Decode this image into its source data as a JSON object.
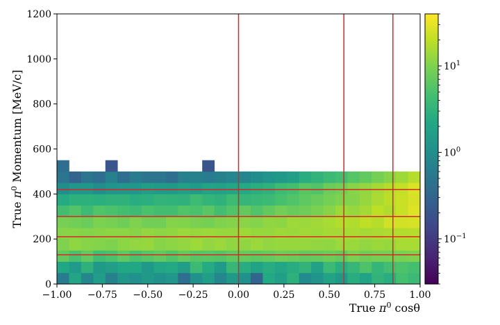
{
  "chart_data": {
    "type": "heatmap",
    "x_label": {
      "before": "True ",
      "sym": "π",
      "sup": "0",
      "after": " cosθ"
    },
    "y_label": {
      "before": "True ",
      "sym": "π",
      "sup": "0",
      "after": " Momentum [MeV/c]"
    },
    "xlim": [
      -1.0,
      1.0
    ],
    "ylim": [
      0,
      1200
    ],
    "x_ticks": [
      "−1.00",
      "−0.75",
      "−0.50",
      "−0.25",
      "0.00",
      "0.25",
      "0.50",
      "0.75",
      "1.00"
    ],
    "x_tick_values": [
      -1.0,
      -0.75,
      -0.5,
      -0.25,
      0.0,
      0.25,
      0.5,
      0.75,
      1.0
    ],
    "y_ticks": [
      "0",
      "200",
      "400",
      "600",
      "800",
      "1000",
      "1200"
    ],
    "y_tick_values": [
      0,
      200,
      400,
      600,
      800,
      1000,
      1200
    ],
    "colorbar": {
      "scale": "log",
      "vmin": 0.03,
      "vmax": 40,
      "ticks": [
        {
          "value": 0.1,
          "base": "10",
          "exp": "−1"
        },
        {
          "value": 1,
          "base": "10",
          "exp": "0"
        },
        {
          "value": 10,
          "base": "10",
          "exp": "1"
        }
      ]
    },
    "bins": {
      "x_count": 30,
      "y_count": 24,
      "x_min": -1.0,
      "x_max": 1.0,
      "y_min": 0,
      "y_max": 1200
    },
    "counts": [
      [
        0.6,
        2.0,
        0.8,
        1.6,
        0.7,
        1.3,
        1.1,
        1.4,
        1.1,
        1.3,
        0.4,
        1.1,
        1.6,
        0.8,
        1.4,
        1.1,
        0.3,
        2.3,
        1.7,
        2.9,
        0.9,
        1.2,
        1.9,
        1.4,
        2.6,
        1.9,
        3.2,
        2.6,
        4.6,
        3.9
      ],
      [
        2.2,
        1.5,
        3.0,
        1.4,
        1.6,
        2.2,
        2.2,
        1.4,
        2.1,
        2.3,
        1.6,
        3.9,
        2.4,
        1.5,
        3.5,
        2.6,
        1.9,
        2.6,
        2.1,
        2.6,
        3.2,
        1.8,
        3.8,
        2.7,
        3.5,
        5.3,
        3.4,
        4.4,
        5.3,
        4.7
      ],
      [
        7.0,
        4.9,
        6.8,
        4.2,
        5.0,
        6.5,
        5.0,
        5.8,
        6.8,
        5.6,
        7.2,
        5.9,
        6.0,
        5.7,
        6.6,
        7.1,
        6.5,
        7.2,
        8.1,
        7.5,
        6.8,
        7.1,
        7.9,
        7.0,
        9.3,
        8.2,
        8.8,
        8.8,
        9.4,
        10.0
      ],
      [
        10.0,
        12.0,
        11.0,
        10.5,
        10.0,
        11.5,
        12.5,
        13.0,
        11.0,
        11.5,
        12.5,
        14.0,
        12.5,
        13.5,
        12.0,
        12.0,
        13.5,
        12.5,
        13.0,
        13.0,
        13.0,
        12.5,
        12.0,
        13.5,
        13.5,
        12.5,
        13.5,
        13.0,
        15.5,
        15.5
      ],
      [
        11.0,
        11.0,
        10.5,
        11.0,
        11.5,
        11.5,
        11.0,
        12.5,
        11.5,
        12.0,
        13.5,
        13.0,
        13.5,
        13.0,
        13.0,
        14.0,
        13.0,
        13.0,
        14.0,
        13.5,
        14.5,
        14.0,
        15.0,
        15.0,
        16.0,
        15.0,
        16.0,
        16.5,
        17.5,
        18.0
      ],
      [
        9.1,
        8.5,
        7.7,
        9.6,
        9.0,
        8.2,
        9.9,
        8.4,
        8.5,
        10.6,
        10.3,
        9.5,
        8.7,
        10.0,
        10.7,
        11.1,
        10.5,
        12.0,
        11.8,
        14.0,
        13.4,
        14.5,
        15.5,
        17.5,
        17.0,
        20.0,
        18.0,
        24.0,
        24.0,
        26.0
      ],
      [
        4.5,
        5.5,
        4.0,
        5.5,
        5.0,
        4.5,
        4.0,
        5.0,
        4.5,
        4.5,
        5.5,
        5.0,
        6.0,
        4.5,
        5.5,
        7.0,
        5.5,
        7.0,
        8.5,
        7.5,
        8.0,
        9.5,
        11.0,
        14.0,
        13.0,
        15.0,
        19.5,
        17.0,
        22.0,
        28.0
      ],
      [
        2.4,
        2.9,
        2.9,
        2.8,
        3.0,
        3.0,
        2.6,
        2.8,
        3.2,
        3.1,
        3.0,
        4.0,
        3.3,
        3.0,
        4.0,
        3.4,
        3.6,
        3.8,
        4.8,
        5.5,
        6.5,
        7.6,
        8.7,
        10.0,
        10.7,
        13.0,
        16.0,
        19.0,
        22.0,
        26.0
      ],
      [
        1.0,
        1.3,
        1.3,
        1.0,
        1.2,
        1.3,
        1.3,
        1.6,
        1.5,
        1.4,
        1.7,
        1.5,
        1.9,
        1.8,
        2.1,
        2.3,
        2.7,
        3.0,
        4.0,
        4.5,
        6.2,
        5.5,
        7.8,
        8.5,
        11.0,
        12.5,
        15.0,
        18.0,
        21.0,
        27.0
      ],
      [
        0.5,
        0.3,
        0.5,
        0.4,
        0.7,
        0.4,
        0.6,
        0.5,
        0.5,
        0.4,
        0.7,
        0.7,
        0.6,
        0.7,
        0.8,
        0.8,
        1.0,
        1.2,
        1.4,
        1.7,
        2.6,
        3.2,
        3.9,
        4.4,
        5.8,
        6.9,
        8.7,
        11.0,
        14.0,
        18.0
      ],
      [
        0.4,
        0.0,
        0.0,
        0.0,
        0.2,
        0.0,
        0.0,
        0.0,
        0.0,
        0.0,
        0.0,
        0.0,
        0.2,
        0.0,
        0.0,
        0.0,
        0.0,
        0.0,
        0.0,
        0.0,
        0.0,
        0.0,
        0.0,
        0.0,
        0.0,
        0.0,
        0.0,
        0.0,
        0.0,
        0.0
      ],
      [
        0.0,
        0.0,
        0.0,
        0.0,
        0.0,
        0.0,
        0.0,
        0.0,
        0.0,
        0.0,
        0.0,
        0.0,
        0.0,
        0.0,
        0.0,
        0.0,
        0.0,
        0.0,
        0.0,
        0.0,
        0.0,
        0.0,
        0.0,
        0.0,
        0.0,
        0.0,
        0.0,
        0.0,
        0.0,
        0.0
      ],
      [
        0.0,
        0.0,
        0.0,
        0.0,
        0.0,
        0.0,
        0.0,
        0.0,
        0.0,
        0.0,
        0.0,
        0.0,
        0.0,
        0.0,
        0.0,
        0.0,
        0.0,
        0.0,
        0.0,
        0.0,
        0.0,
        0.0,
        0.0,
        0.0,
        0.0,
        0.0,
        0.0,
        0.0,
        0.0,
        0.0
      ],
      [
        0.0,
        0.0,
        0.0,
        0.0,
        0.0,
        0.0,
        0.0,
        0.0,
        0.0,
        0.0,
        0.0,
        0.0,
        0.0,
        0.0,
        0.0,
        0.0,
        0.0,
        0.0,
        0.0,
        0.0,
        0.0,
        0.0,
        0.0,
        0.0,
        0.0,
        0.0,
        0.0,
        0.0,
        0.0,
        0.0
      ],
      [
        0.0,
        0.0,
        0.0,
        0.0,
        0.0,
        0.0,
        0.0,
        0.0,
        0.0,
        0.0,
        0.0,
        0.0,
        0.0,
        0.0,
        0.0,
        0.0,
        0.0,
        0.0,
        0.0,
        0.0,
        0.0,
        0.0,
        0.0,
        0.0,
        0.0,
        0.0,
        0.0,
        0.0,
        0.0,
        0.0
      ],
      [
        0.0,
        0.0,
        0.0,
        0.0,
        0.0,
        0.0,
        0.0,
        0.0,
        0.0,
        0.0,
        0.0,
        0.0,
        0.0,
        0.0,
        0.0,
        0.0,
        0.0,
        0.0,
        0.0,
        0.0,
        0.0,
        0.0,
        0.0,
        0.0,
        0.0,
        0.0,
        0.0,
        0.0,
        0.0,
        0.0
      ],
      [
        0.0,
        0.0,
        0.0,
        0.0,
        0.0,
        0.0,
        0.0,
        0.0,
        0.0,
        0.0,
        0.0,
        0.0,
        0.0,
        0.0,
        0.0,
        0.0,
        0.0,
        0.0,
        0.0,
        0.0,
        0.0,
        0.0,
        0.0,
        0.0,
        0.0,
        0.0,
        0.0,
        0.0,
        0.0,
        0.0
      ],
      [
        0.0,
        0.0,
        0.0,
        0.0,
        0.0,
        0.0,
        0.0,
        0.0,
        0.0,
        0.0,
        0.0,
        0.0,
        0.0,
        0.0,
        0.0,
        0.0,
        0.0,
        0.0,
        0.0,
        0.0,
        0.0,
        0.0,
        0.0,
        0.0,
        0.0,
        0.0,
        0.0,
        0.0,
        0.0,
        0.0
      ],
      [
        0.0,
        0.0,
        0.0,
        0.0,
        0.0,
        0.0,
        0.0,
        0.0,
        0.0,
        0.0,
        0.0,
        0.0,
        0.0,
        0.0,
        0.0,
        0.0,
        0.0,
        0.0,
        0.0,
        0.0,
        0.0,
        0.0,
        0.0,
        0.0,
        0.0,
        0.0,
        0.0,
        0.0,
        0.0,
        0.0
      ],
      [
        0.0,
        0.0,
        0.0,
        0.0,
        0.0,
        0.0,
        0.0,
        0.0,
        0.0,
        0.0,
        0.0,
        0.0,
        0.0,
        0.0,
        0.0,
        0.0,
        0.0,
        0.0,
        0.0,
        0.0,
        0.0,
        0.0,
        0.0,
        0.0,
        0.0,
        0.0,
        0.0,
        0.0,
        0.0,
        0.0
      ],
      [
        0.0,
        0.0,
        0.0,
        0.0,
        0.0,
        0.0,
        0.0,
        0.0,
        0.0,
        0.0,
        0.0,
        0.0,
        0.0,
        0.0,
        0.0,
        0.0,
        0.0,
        0.0,
        0.0,
        0.0,
        0.0,
        0.0,
        0.0,
        0.0,
        0.0,
        0.0,
        0.0,
        0.0,
        0.0,
        0.0
      ],
      [
        0.0,
        0.0,
        0.0,
        0.0,
        0.0,
        0.0,
        0.0,
        0.0,
        0.0,
        0.0,
        0.0,
        0.0,
        0.0,
        0.0,
        0.0,
        0.0,
        0.0,
        0.0,
        0.0,
        0.0,
        0.0,
        0.0,
        0.0,
        0.0,
        0.0,
        0.0,
        0.0,
        0.0,
        0.0,
        0.0
      ],
      [
        0.0,
        0.0,
        0.0,
        0.0,
        0.0,
        0.0,
        0.0,
        0.0,
        0.0,
        0.0,
        0.0,
        0.0,
        0.0,
        0.0,
        0.0,
        0.0,
        0.0,
        0.0,
        0.0,
        0.0,
        0.0,
        0.0,
        0.0,
        0.0,
        0.0,
        0.0,
        0.0,
        0.0,
        0.0,
        0.0
      ],
      [
        0.0,
        0.0,
        0.0,
        0.0,
        0.0,
        0.0,
        0.0,
        0.0,
        0.0,
        0.0,
        0.0,
        0.0,
        0.0,
        0.0,
        0.0,
        0.0,
        0.0,
        0.0,
        0.0,
        0.0,
        0.0,
        0.0,
        0.0,
        0.0,
        0.0,
        0.0,
        0.0,
        0.0,
        0.0,
        0.0
      ]
    ],
    "vertical_lines": [
      0.0,
      0.58,
      0.85
    ],
    "horizontal_lines": [
      130,
      210,
      300,
      420
    ],
    "line_color": "#d62728",
    "colormap": "viridis"
  }
}
